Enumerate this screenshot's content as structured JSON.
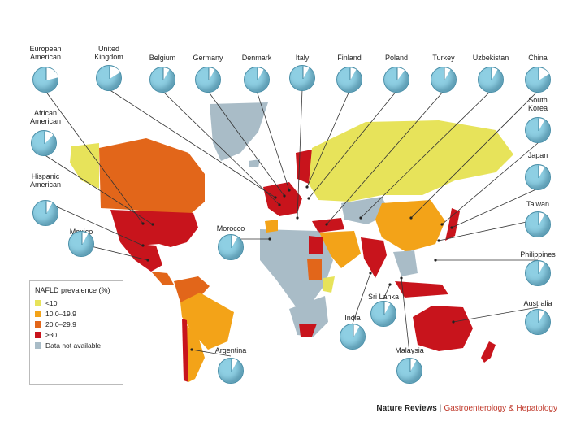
{
  "map": {
    "colors": {
      "lt10": "#e7e35a",
      "b10_20": "#f3a318",
      "b20_30": "#e2661a",
      "ge30": "#c8141c",
      "na": "#a9bcc7",
      "pie_fill": "#8ecfe3",
      "pie_wedge": "#ffffff"
    }
  },
  "legend": {
    "title": "NAFLD prevalence (%)",
    "items": [
      {
        "label": "<10",
        "color": "#e7e35a"
      },
      {
        "label": "10.0–19.9",
        "color": "#f3a318"
      },
      {
        "label": "20.0–29.9",
        "color": "#e2661a"
      },
      {
        "label": "≥30",
        "color": "#c8141c"
      },
      {
        "label": "Data not available",
        "color": "#a9bcc7"
      }
    ]
  },
  "pies": [
    {
      "label": "European\nAmerican",
      "fraction": 0.21
    },
    {
      "label": "United\nKingdom",
      "fraction": 0.16
    },
    {
      "label": "Belgium",
      "fraction": 0.08
    },
    {
      "label": "Germany",
      "fraction": 0.08
    },
    {
      "label": "Denmark",
      "fraction": 0.08
    },
    {
      "label": "Italy",
      "fraction": 0.08
    },
    {
      "label": "Finland",
      "fraction": 0.08
    },
    {
      "label": "Poland",
      "fraction": 0.1
    },
    {
      "label": "Turkey",
      "fraction": 0.08
    },
    {
      "label": "Uzbekistan",
      "fraction": 0.08
    },
    {
      "label": "China",
      "fraction": 0.16
    },
    {
      "label": "African\nAmerican",
      "fraction": 0.12
    },
    {
      "label": "South\nKorea",
      "fraction": 0.08
    },
    {
      "label": "Hispanic\nAmerican",
      "fraction": 0.08
    },
    {
      "label": "Japan",
      "fraction": 0.08
    },
    {
      "label": "Taiwan",
      "fraction": 0.08
    },
    {
      "label": "Mexico",
      "fraction": 0.08
    },
    {
      "label": "Morocco",
      "fraction": 0.08
    },
    {
      "label": "Philippines",
      "fraction": 0.08
    },
    {
      "label": "Sri Lanka",
      "fraction": 0.08
    },
    {
      "label": "Australia",
      "fraction": 0.08
    },
    {
      "label": "India",
      "fraction": 0.08
    },
    {
      "label": "Argentina",
      "fraction": 0.08
    },
    {
      "label": "Malaysia",
      "fraction": 0.08
    }
  ],
  "footer": {
    "journal": "Nature Reviews",
    "separator": "|",
    "section": "Gastroenterology & Hepatology"
  }
}
